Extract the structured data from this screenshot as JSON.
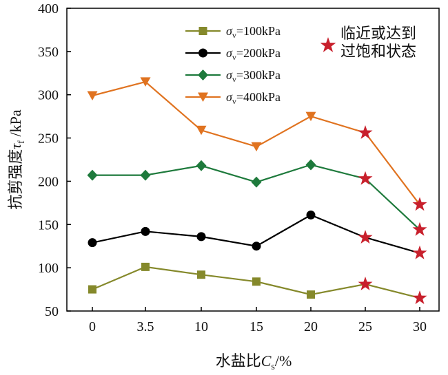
{
  "chart_data": {
    "type": "line",
    "xlabel": "水盐比C",
    "xlabel_sub": "s",
    "xlabel_unit": "/%",
    "ylabel": "抗剪强度τ",
    "ylabel_sub": "f",
    "ylabel_unit": " /kPa",
    "categories": [
      "0",
      "3.5",
      "10",
      "15",
      "20",
      "25",
      "30"
    ],
    "ylim": [
      50,
      400
    ],
    "yticks": [
      50,
      100,
      150,
      200,
      250,
      300,
      350,
      400
    ],
    "grid": false,
    "legend_position": "top-center",
    "series": [
      {
        "name": "σv=100kPa",
        "sigma": "σ",
        "sub": "v",
        "rest": "=100kPa",
        "color": "#85892b",
        "marker": "square",
        "values": [
          75,
          101,
          92,
          84,
          69,
          81,
          65
        ],
        "star_from": 5
      },
      {
        "name": "σv=200kPa",
        "sigma": "σ",
        "sub": "v",
        "rest": "=200kPa",
        "color": "#000000",
        "marker": "circle",
        "values": [
          129,
          142,
          136,
          125,
          161,
          135,
          117
        ],
        "star_from": 5
      },
      {
        "name": "σv=300kPa",
        "sigma": "σ",
        "sub": "v",
        "rest": "=300kPa",
        "color": "#1e7a3c",
        "marker": "diamond",
        "values": [
          207,
          207,
          218,
          199,
          219,
          203,
          144
        ],
        "star_from": 5
      },
      {
        "name": "σv=400kPa",
        "sigma": "σ",
        "sub": "v",
        "rest": "=400kPa",
        "color": "#e07320",
        "marker": "triangle-down",
        "values": [
          299,
          315,
          259,
          240,
          275,
          256,
          173
        ],
        "star_from": 5
      }
    ],
    "star_color": "#c8202c",
    "star_legend": [
      "临近或达到",
      "过饱和状态"
    ]
  }
}
